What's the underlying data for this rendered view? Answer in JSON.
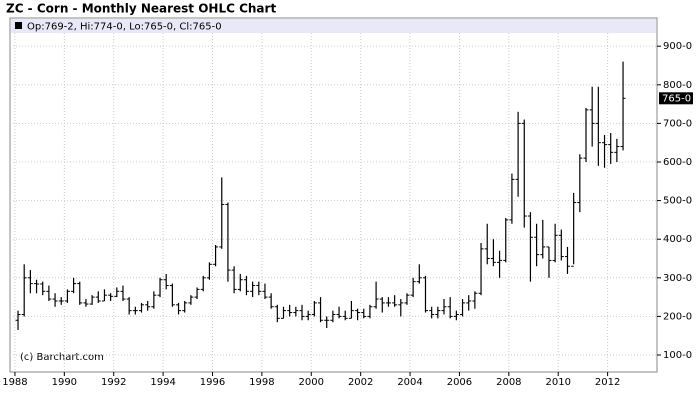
{
  "chart_data": {
    "type": "ohlc",
    "title": "ZC - Corn - Monthly Nearest OHLC Chart",
    "legend_text": "Op:769-2, Hi:774-0, Lo:765-0, Cl:765-0",
    "last_price_label": "765-0",
    "watermark": "(c) Barchart.com",
    "color": "#000000",
    "grid": true,
    "xlim": [
      1987.8,
      2014
    ],
    "ylim": [
      56,
      973
    ],
    "xticks": [
      1988,
      1990,
      1992,
      1994,
      1996,
      1998,
      2000,
      2002,
      2004,
      2006,
      2008,
      2010,
      2012
    ],
    "yticks": [
      {
        "value": 100,
        "label": "100-0"
      },
      {
        "value": 200,
        "label": "200-0"
      },
      {
        "value": 300,
        "label": "300-0"
      },
      {
        "value": 400,
        "label": "400-0"
      },
      {
        "value": 500,
        "label": "500-0"
      },
      {
        "value": 600,
        "label": "600-0"
      },
      {
        "value": 700,
        "label": "700-0"
      },
      {
        "value": 800,
        "label": "800-0"
      },
      {
        "value": 900,
        "label": "900-0"
      }
    ],
    "x": [
      1988.125,
      1988.375,
      1988.625,
      1988.875,
      1989.125,
      1989.375,
      1989.625,
      1989.875,
      1990.125,
      1990.375,
      1990.625,
      1990.875,
      1991.125,
      1991.375,
      1991.625,
      1991.875,
      1992.125,
      1992.375,
      1992.625,
      1992.875,
      1993.125,
      1993.375,
      1993.625,
      1993.875,
      1994.125,
      1994.375,
      1994.625,
      1994.875,
      1995.125,
      1995.375,
      1995.625,
      1995.875,
      1996.125,
      1996.375,
      1996.625,
      1996.875,
      1997.125,
      1997.375,
      1997.625,
      1997.875,
      1998.125,
      1998.375,
      1998.625,
      1998.875,
      1999.125,
      1999.375,
      1999.625,
      1999.875,
      2000.125,
      2000.375,
      2000.625,
      2000.875,
      2001.125,
      2001.375,
      2001.625,
      2001.875,
      2002.125,
      2002.375,
      2002.625,
      2002.875,
      2003.125,
      2003.375,
      2003.625,
      2003.875,
      2004.125,
      2004.375,
      2004.625,
      2004.875,
      2005.125,
      2005.375,
      2005.625,
      2005.875,
      2006.125,
      2006.375,
      2006.625,
      2006.875,
      2007.125,
      2007.375,
      2007.625,
      2007.875,
      2008.125,
      2008.375,
      2008.625,
      2008.875,
      2009.125,
      2009.375,
      2009.625,
      2009.875,
      2010.125,
      2010.375,
      2010.625,
      2010.875,
      2011.125,
      2011.375,
      2011.625,
      2011.875,
      2012.125,
      2012.375,
      2012.625
    ],
    "open": [
      190,
      205,
      300,
      285,
      284,
      265,
      245,
      240,
      240,
      265,
      285,
      235,
      232,
      250,
      240,
      255,
      252,
      265,
      245,
      215,
      215,
      230,
      225,
      255,
      295,
      280,
      230,
      215,
      235,
      250,
      270,
      300,
      335,
      380,
      490,
      320,
      270,
      295,
      265,
      280,
      265,
      250,
      225,
      195,
      215,
      210,
      215,
      200,
      205,
      235,
      190,
      190,
      205,
      200,
      195,
      215,
      210,
      200,
      225,
      245,
      235,
      235,
      230,
      235,
      255,
      290,
      300,
      215,
      205,
      215,
      225,
      200,
      205,
      235,
      240,
      260,
      375,
      350,
      340,
      345,
      450,
      555,
      700,
      460,
      405,
      360,
      380,
      345,
      410,
      355,
      330,
      495,
      610,
      735,
      700,
      650,
      645,
      625,
      640
    ],
    "high": [
      215,
      335,
      320,
      295,
      290,
      280,
      260,
      250,
      270,
      300,
      290,
      245,
      255,
      265,
      270,
      260,
      275,
      280,
      250,
      225,
      235,
      240,
      265,
      300,
      310,
      285,
      235,
      240,
      255,
      275,
      305,
      340,
      385,
      560,
      495,
      330,
      310,
      305,
      290,
      290,
      285,
      260,
      230,
      225,
      230,
      225,
      230,
      215,
      240,
      250,
      200,
      215,
      225,
      215,
      240,
      220,
      220,
      230,
      290,
      250,
      250,
      255,
      245,
      260,
      300,
      335,
      305,
      225,
      225,
      245,
      250,
      215,
      245,
      255,
      265,
      390,
      440,
      400,
      370,
      455,
      570,
      730,
      710,
      470,
      440,
      450,
      380,
      440,
      425,
      380,
      520,
      620,
      740,
      795,
      795,
      670,
      675,
      660,
      860
    ],
    "low": [
      165,
      200,
      260,
      260,
      255,
      240,
      225,
      230,
      235,
      260,
      230,
      225,
      230,
      235,
      240,
      240,
      250,
      240,
      205,
      205,
      210,
      215,
      220,
      250,
      270,
      225,
      205,
      210,
      230,
      245,
      265,
      295,
      330,
      375,
      290,
      260,
      265,
      255,
      250,
      255,
      245,
      220,
      185,
      195,
      200,
      200,
      190,
      190,
      200,
      185,
      170,
      185,
      195,
      190,
      195,
      190,
      195,
      195,
      220,
      210,
      225,
      225,
      200,
      230,
      250,
      285,
      210,
      195,
      195,
      205,
      195,
      190,
      200,
      215,
      220,
      255,
      335,
      330,
      300,
      340,
      440,
      510,
      430,
      290,
      330,
      350,
      300,
      340,
      345,
      310,
      335,
      470,
      600,
      640,
      590,
      585,
      595,
      600,
      630
    ],
    "close": [
      205,
      300,
      285,
      284,
      265,
      245,
      240,
      240,
      265,
      285,
      235,
      232,
      250,
      240,
      255,
      252,
      265,
      245,
      215,
      215,
      230,
      225,
      255,
      295,
      280,
      230,
      215,
      235,
      250,
      270,
      300,
      335,
      380,
      490,
      320,
      270,
      295,
      265,
      280,
      265,
      250,
      225,
      195,
      215,
      210,
      215,
      200,
      205,
      235,
      190,
      190,
      205,
      200,
      195,
      215,
      210,
      200,
      225,
      245,
      235,
      235,
      230,
      235,
      255,
      290,
      300,
      215,
      205,
      215,
      225,
      200,
      205,
      235,
      240,
      260,
      375,
      350,
      340,
      345,
      450,
      555,
      700,
      460,
      405,
      360,
      380,
      345,
      410,
      355,
      330,
      495,
      610,
      735,
      700,
      650,
      645,
      625,
      640,
      765
    ]
  }
}
